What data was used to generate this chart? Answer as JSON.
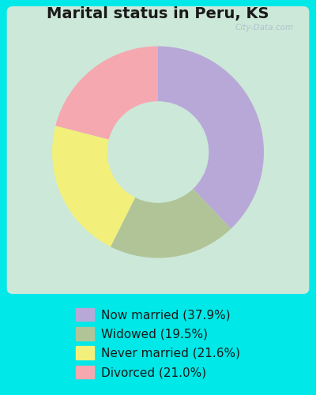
{
  "title": "Marital status in Peru, KS",
  "categories": [
    "Now married",
    "Widowed",
    "Never married",
    "Divorced"
  ],
  "values": [
    37.9,
    19.5,
    21.6,
    21.0
  ],
  "colors": [
    "#b8a8d8",
    "#b0c498",
    "#f2f07a",
    "#f5a8b0"
  ],
  "legend_labels": [
    "Now married (37.9%)",
    "Widowed (19.5%)",
    "Never married (21.6%)",
    "Divorced (21.0%)"
  ],
  "bg_cyan": "#00e8e8",
  "bg_chart": "#cce8d8",
  "title_fontsize": 14,
  "legend_fontsize": 11,
  "watermark": "City-Data.com"
}
